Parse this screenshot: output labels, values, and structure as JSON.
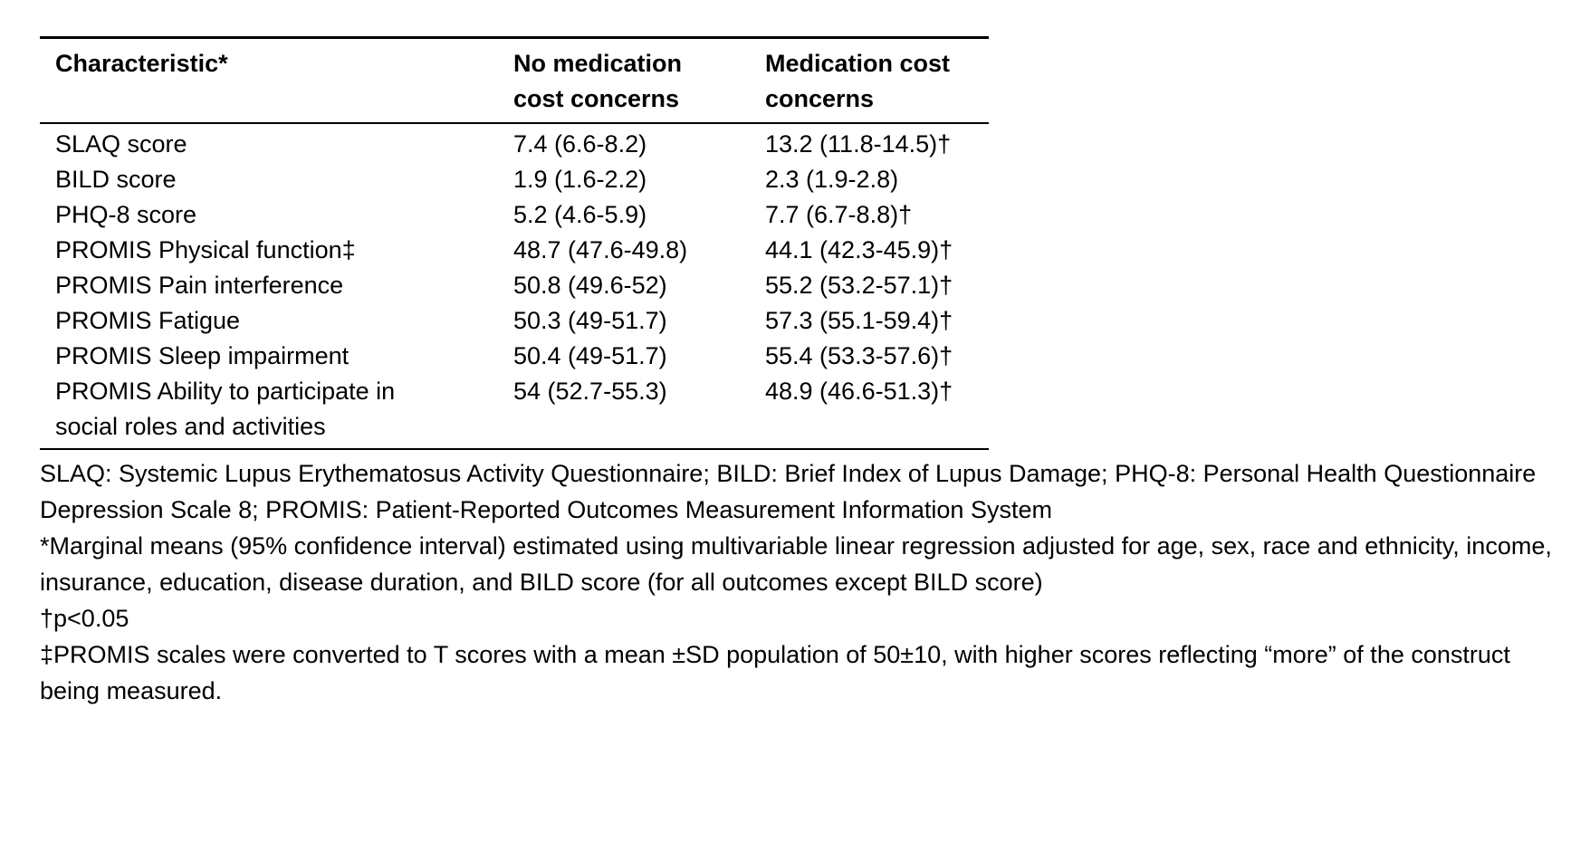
{
  "table": {
    "col_headers": {
      "characteristic": "Characteristic*",
      "no_concerns": "No medication cost concerns",
      "concerns": "Medication cost concerns"
    },
    "rows": [
      {
        "label": "SLAQ score",
        "no_concerns": "7.4 (6.6-8.2)",
        "concerns": "13.2 (11.8-14.5)†"
      },
      {
        "label": "BILD score",
        "no_concerns": "1.9 (1.6-2.2)",
        "concerns": "2.3 (1.9-2.8)"
      },
      {
        "label": "PHQ-8 score",
        "no_concerns": "5.2 (4.6-5.9)",
        "concerns": "7.7 (6.7-8.8)†"
      },
      {
        "label": "PROMIS Physical function‡",
        "no_concerns": "48.7 (47.6-49.8)",
        "concerns": "44.1 (42.3-45.9)†"
      },
      {
        "label": "PROMIS Pain interference",
        "no_concerns": "50.8 (49.6-52)",
        "concerns": "55.2 (53.2-57.1)†"
      },
      {
        "label": "PROMIS Fatigue",
        "no_concerns": "50.3 (49-51.7)",
        "concerns": "57.3 (55.1-59.4)†"
      },
      {
        "label": "PROMIS Sleep impairment",
        "no_concerns": "50.4 (49-51.7)",
        "concerns": "55.4 (53.3-57.6)†"
      },
      {
        "label": "PROMIS Ability to participate in social roles and activities",
        "no_concerns": "54 (52.7-55.3)",
        "concerns": "48.9 (46.6-51.3)†"
      }
    ]
  },
  "footnotes": [
    "SLAQ: Systemic Lupus Erythematosus Activity Questionnaire; BILD: Brief Index of Lupus Damage; PHQ-8: Personal Health Questionnaire Depression Scale 8; PROMIS: Patient-Reported Outcomes Measurement Information System",
    "*Marginal means (95% confidence interval) estimated using multivariable linear regression adjusted for age, sex, race and ethnicity, income, insurance, education, disease duration, and BILD score (for all outcomes except BILD score)",
    "†p<0.05",
    "‡PROMIS scales were converted to T scores with a mean ±SD population of 50±10, with higher scores reflecting “more” of the construct being measured."
  ]
}
